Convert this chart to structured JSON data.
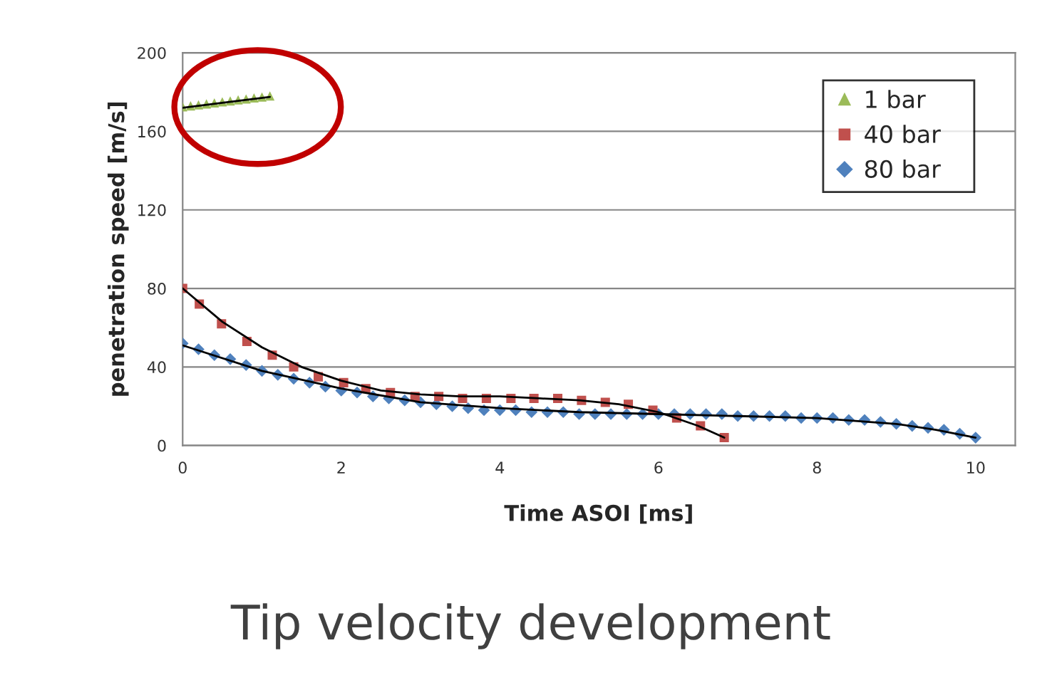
{
  "chart_data": {
    "type": "scatter",
    "title": "Tip velocity development",
    "xlabel": "Time ASOI [ms]",
    "ylabel": "penetration speed [m/s]",
    "xlim": [
      0,
      10.5
    ],
    "xticks": [
      0,
      2,
      4,
      6,
      8,
      10
    ],
    "ylim": [
      0,
      200
    ],
    "yticks": [
      0,
      40,
      80,
      120,
      160,
      200
    ],
    "grid": "y",
    "legend": "top right",
    "series": [
      {
        "name": "1 bar",
        "color": "#9bbb59",
        "marker": "triangle",
        "x": [
          0,
          0.1,
          0.2,
          0.3,
          0.4,
          0.5,
          0.6,
          0.7,
          0.8,
          0.9,
          1.0,
          1.1
        ],
        "values": [
          172.5,
          173,
          173.5,
          174,
          174.5,
          175,
          175.5,
          176,
          176.5,
          177,
          177.5,
          178
        ]
      },
      {
        "name": "40 bar",
        "color": "#c0504d",
        "marker": "square",
        "x": [
          0,
          0.21,
          0.49,
          0.81,
          1.13,
          1.4,
          1.71,
          2.03,
          2.31,
          2.62,
          2.93,
          3.23,
          3.53,
          3.83,
          4.14,
          4.43,
          4.73,
          5.03,
          5.33,
          5.62,
          5.93,
          6.23,
          6.53,
          6.83
        ],
        "values": [
          80,
          72,
          62,
          53,
          46,
          40,
          35,
          32,
          29,
          27,
          25,
          25,
          24,
          24,
          24,
          24,
          24,
          23,
          22,
          21,
          18,
          14,
          10,
          4
        ]
      },
      {
        "name": "80 bar",
        "color": "#4f81bd",
        "marker": "diamond",
        "x": [
          0,
          0.2,
          0.4,
          0.6,
          0.8,
          1.0,
          1.2,
          1.4,
          1.6,
          1.8,
          2.0,
          2.2,
          2.4,
          2.6,
          2.8,
          3.0,
          3.2,
          3.4,
          3.6,
          3.8,
          4.0,
          4.2,
          4.4,
          4.6,
          4.8,
          5.0,
          5.2,
          5.4,
          5.6,
          5.8,
          6.0,
          6.2,
          6.4,
          6.6,
          6.8,
          7.0,
          7.2,
          7.4,
          7.6,
          7.8,
          8.0,
          8.2,
          8.4,
          8.6,
          8.8,
          9.0,
          9.2,
          9.4,
          9.6,
          9.8,
          10.0
        ],
        "values": [
          52,
          49,
          46,
          44,
          41,
          38,
          36,
          34,
          32,
          30,
          28,
          27,
          25,
          24,
          23,
          22,
          21,
          20,
          19,
          18,
          18,
          18,
          17,
          17,
          17,
          16,
          16,
          16,
          16,
          16,
          16,
          16,
          16,
          16,
          16,
          15,
          15,
          15,
          15,
          14,
          14,
          14,
          13,
          13,
          12,
          11,
          10,
          9,
          8,
          6,
          4
        ]
      },
      {
        "type": "line",
        "color": "#000000",
        "x": [
          0,
          0.5,
          1.1
        ],
        "values": [
          172,
          174.5,
          177.5
        ]
      },
      {
        "type": "line",
        "color": "#000000",
        "x": [
          0,
          0.5,
          1,
          1.5,
          2,
          2.5,
          3,
          3.5,
          4,
          4.5,
          5,
          5.5,
          6,
          6.5,
          6.83
        ],
        "values": [
          80,
          63,
          50,
          40,
          33,
          28,
          26,
          25,
          25,
          24,
          23,
          21,
          17,
          10,
          4
        ]
      },
      {
        "type": "line",
        "color": "#000000",
        "x": [
          0,
          1,
          2,
          3,
          4,
          5,
          6,
          7,
          8,
          9,
          9.5,
          10
        ],
        "values": [
          51,
          38,
          29,
          22,
          19,
          17,
          16,
          15,
          14,
          11,
          8,
          4
        ]
      }
    ]
  }
}
